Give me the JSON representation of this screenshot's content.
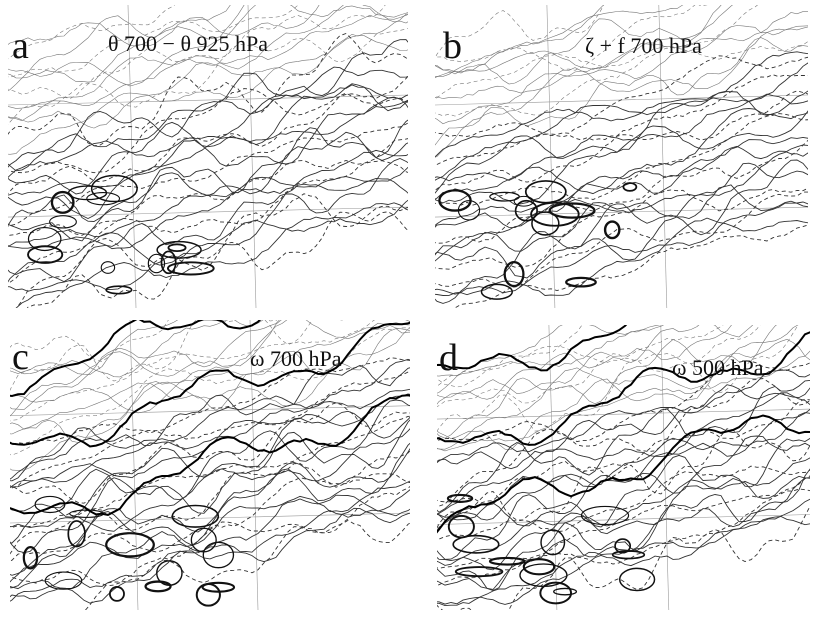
{
  "panels": [
    {
      "label": "a",
      "title": "θ 700  − θ 925  hPa"
    },
    {
      "label": "b",
      "title": "ζ + f  700 hPa"
    },
    {
      "label": "c",
      "title": "ω 700 hPa"
    },
    {
      "label": "d",
      "title": "ω 500 hPa"
    }
  ]
}
